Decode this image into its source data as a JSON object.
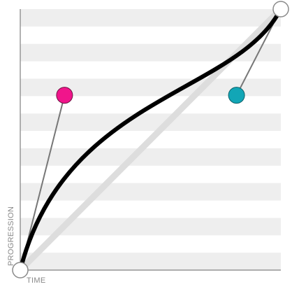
{
  "axes": {
    "x_label": "TIME",
    "y_label": "PROGRESSION"
  },
  "curve": {
    "type": "cubic-bezier",
    "p1": [
      0.17,
      0.67
    ],
    "p2": [
      0.83,
      0.67
    ]
  },
  "colors": {
    "background": "#ffffff",
    "stripe": "#eeeeee",
    "axis": "#666666",
    "linear_reference": "#dddddd",
    "curve": "#000000",
    "handle_arm": "#777777",
    "p1_handle": "#f0158b",
    "p2_handle": "#12a6b6",
    "endpoint_fill": "#ffffff",
    "endpoint_stroke": "#8a8a8a"
  },
  "icons": {
    "p1_handle": "pink-control-point",
    "p2_handle": "teal-control-point",
    "start_point": "start-anchor",
    "end_point": "end-anchor"
  }
}
